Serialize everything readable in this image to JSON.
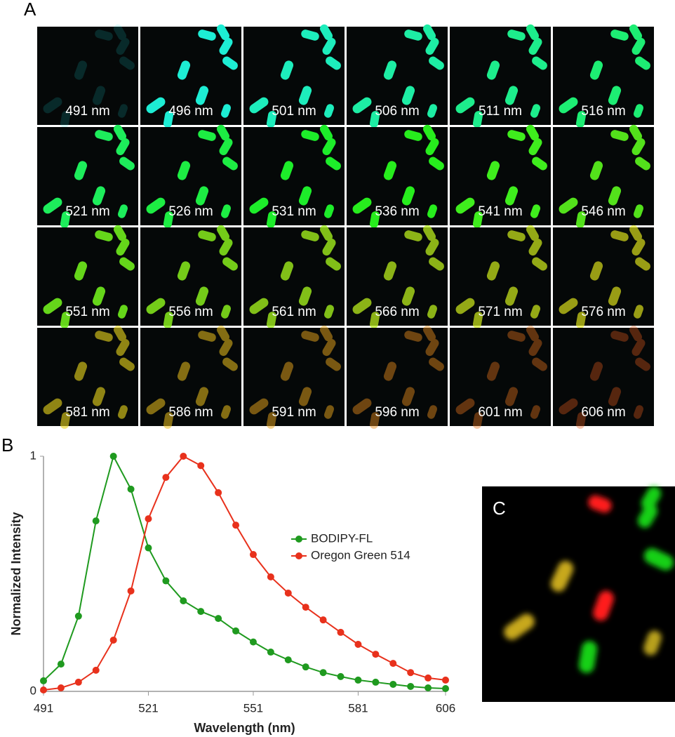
{
  "panel_labels": [
    "A",
    "B",
    "C"
  ],
  "tiles": [
    "491 nm",
    "496 nm",
    "501 nm",
    "506 nm",
    "511 nm",
    "516 nm",
    "521 nm",
    "526 nm",
    "531 nm",
    "536 nm",
    "541 nm",
    "546 nm",
    "551 nm",
    "556 nm",
    "561 nm",
    "566 nm",
    "571 nm",
    "576 nm",
    "581 nm",
    "586 nm",
    "591 nm",
    "596 nm",
    "601 nm",
    "606 nm"
  ],
  "chart_data": {
    "type": "line",
    "xlabel": "Wavelength (nm)",
    "ylabel": "Normalized Intensity",
    "x": [
      491,
      496,
      501,
      506,
      511,
      516,
      521,
      526,
      531,
      536,
      541,
      546,
      551,
      556,
      561,
      566,
      571,
      576,
      581,
      586,
      591,
      596,
      601,
      606
    ],
    "series": [
      {
        "name": "BODIPY-FL",
        "color": "#1f9a1f",
        "values": [
          0.045,
          0.116,
          0.32,
          0.725,
          1.0,
          0.86,
          0.61,
          0.47,
          0.385,
          0.34,
          0.31,
          0.257,
          0.21,
          0.167,
          0.134,
          0.104,
          0.08,
          0.063,
          0.048,
          0.039,
          0.03,
          0.021,
          0.015,
          0.012
        ]
      },
      {
        "name": "Oregon Green 514",
        "color": "#e8311c",
        "values": [
          0.006,
          0.015,
          0.039,
          0.09,
          0.218,
          0.427,
          0.734,
          0.91,
          1.0,
          0.96,
          0.845,
          0.707,
          0.582,
          0.487,
          0.418,
          0.358,
          0.304,
          0.251,
          0.2,
          0.158,
          0.119,
          0.08,
          0.057,
          0.048
        ]
      }
    ],
    "xlim": [
      491,
      606
    ],
    "ylim": [
      0,
      1
    ],
    "xticks": [
      491,
      521,
      551,
      581,
      606
    ],
    "yticks": [
      0,
      1
    ],
    "legend": "right"
  }
}
